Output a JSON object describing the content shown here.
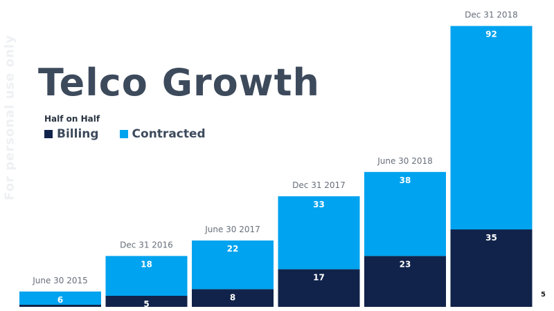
{
  "watermark": "For personal use only",
  "page_number": "5",
  "chart_data": {
    "type": "bar",
    "stacked": true,
    "title": "Telco Growth",
    "subtitle": "Half on Half",
    "categories": [
      "June 30 2015",
      "Dec 31 2016",
      "June 30 2017",
      "Dec 31 2017",
      "June 30 2018",
      "Dec 31 2018"
    ],
    "series": [
      {
        "name": "Billing",
        "color": "#11234a",
        "values": [
          null,
          5,
          8,
          17,
          23,
          35
        ],
        "labels": [
          "",
          "5",
          "8",
          "17",
          "23",
          "35"
        ]
      },
      {
        "name": "Contracted",
        "color": "#00a3ef",
        "values": [
          6,
          18,
          22,
          33,
          38,
          92
        ],
        "labels": [
          "6",
          "18",
          "22",
          "33",
          "38",
          "92"
        ]
      }
    ],
    "legend_position": "top-left",
    "grid": false,
    "ylim": [
      0,
      127
    ]
  }
}
